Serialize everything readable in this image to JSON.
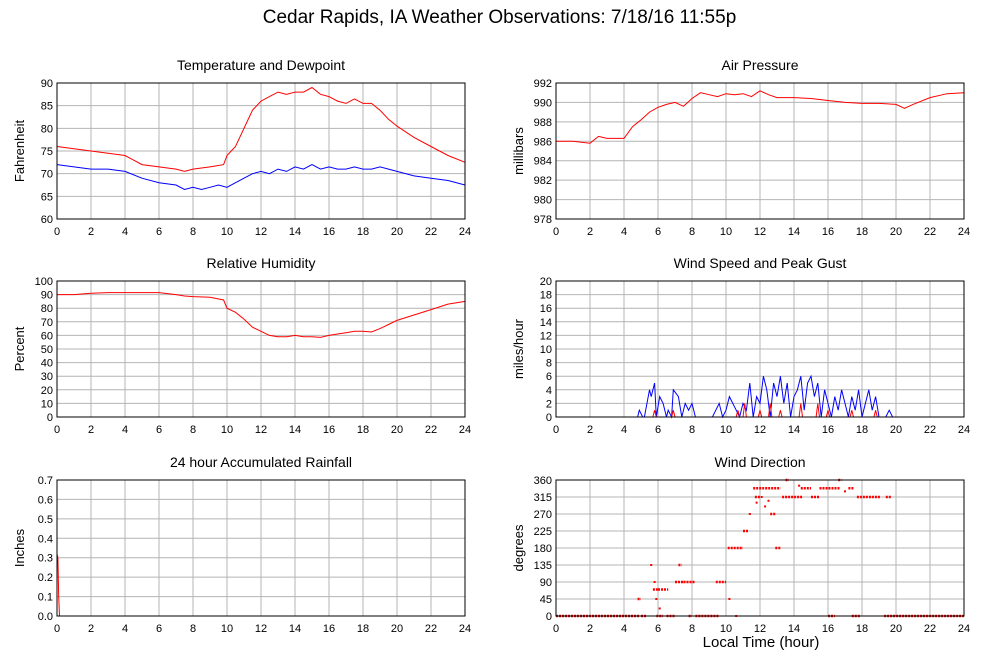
{
  "page": {
    "title": "Cedar Rapids, IA Weather Observations: 7/18/16 11:55p",
    "xaxis_label": "Local Time (hour)"
  },
  "colors": {
    "primary": "#ff0000",
    "secondary": "#0000ff",
    "grid": "#b4b4b4",
    "frame": "#000000"
  },
  "chart_data": [
    {
      "id": "temp",
      "type": "line",
      "title": "Temperature and Dewpoint",
      "ylabel": "Fahrenheit",
      "xlim": [
        0,
        24
      ],
      "ylim": [
        60,
        90
      ],
      "grid": true,
      "xticks": [
        "0",
        "2",
        "4",
        "6",
        "8",
        "10",
        "12",
        "14",
        "16",
        "18",
        "20",
        "22",
        "24"
      ],
      "yticks": [
        "60",
        "65",
        "70",
        "75",
        "80",
        "85",
        "90"
      ],
      "series": [
        {
          "color": "#ff0000",
          "x": [
            0,
            1,
            2,
            3,
            4,
            4.5,
            5,
            6,
            7,
            7.5,
            8,
            9,
            9.8,
            10,
            10.5,
            11,
            11.5,
            12,
            12.5,
            13,
            13.5,
            14,
            14.5,
            15,
            15.5,
            16,
            16.5,
            17,
            17.5,
            18,
            18.5,
            19,
            19.5,
            20,
            21,
            22,
            23,
            24
          ],
          "y": [
            76,
            75.5,
            75,
            74.5,
            74,
            73,
            72,
            71.5,
            71,
            70.5,
            71,
            71.5,
            72,
            74,
            76,
            80,
            84,
            86,
            87,
            88,
            87.5,
            88,
            88,
            89,
            87.5,
            87,
            86,
            85.5,
            86.5,
            85.5,
            85.5,
            84,
            82,
            80.5,
            78,
            76,
            74,
            72.5
          ]
        },
        {
          "color": "#0000ff",
          "x": [
            0,
            1,
            2,
            3,
            4,
            5,
            6,
            7,
            7.5,
            8,
            8.5,
            9,
            9.5,
            10,
            10.5,
            11,
            11.5,
            12,
            12.5,
            13,
            13.5,
            14,
            14.5,
            15,
            15.5,
            16,
            16.5,
            17,
            17.5,
            18,
            18.5,
            19,
            19.5,
            20,
            21,
            22,
            23,
            24
          ],
          "y": [
            72,
            71.5,
            71,
            71,
            70.5,
            69,
            68,
            67.5,
            66.5,
            67,
            66.5,
            67,
            67.5,
            67,
            68,
            69,
            70,
            70.5,
            70,
            71,
            70.5,
            71.5,
            71,
            72,
            71,
            71.5,
            71,
            71,
            71.5,
            71,
            71,
            71.5,
            71,
            70.5,
            69.5,
            69,
            68.5,
            67.5
          ]
        }
      ]
    },
    {
      "id": "pressure",
      "type": "line",
      "title": "Air Pressure",
      "ylabel": "millibars",
      "xlim": [
        0,
        24
      ],
      "ylim": [
        978,
        992
      ],
      "grid": true,
      "xticks": [
        "0",
        "2",
        "4",
        "6",
        "8",
        "10",
        "12",
        "14",
        "16",
        "18",
        "20",
        "22",
        "24"
      ],
      "yticks": [
        "978",
        "980",
        "982",
        "984",
        "986",
        "988",
        "990",
        "992"
      ],
      "series": [
        {
          "color": "#ff0000",
          "x": [
            0,
            1,
            2,
            2.5,
            3,
            4,
            4.5,
            5,
            5.5,
            6,
            6.5,
            7,
            7.5,
            8,
            8.5,
            9,
            9.5,
            10,
            10.5,
            11,
            11.5,
            12,
            12.5,
            13,
            14,
            15,
            16,
            17,
            18,
            19,
            20,
            20.5,
            21,
            22,
            23,
            24
          ],
          "y": [
            986,
            986,
            985.8,
            986.5,
            986.3,
            986.3,
            987.5,
            988.2,
            989,
            989.5,
            989.8,
            990,
            989.6,
            990.4,
            991,
            990.8,
            990.6,
            990.9,
            990.8,
            990.9,
            990.6,
            991.2,
            990.8,
            990.5,
            990.5,
            990.4,
            990.2,
            990,
            989.9,
            989.9,
            989.8,
            989.4,
            989.8,
            990.5,
            990.9,
            991
          ]
        }
      ]
    },
    {
      "id": "humidity",
      "type": "line",
      "title": "Relative Humidity",
      "ylabel": "Percent",
      "xlim": [
        0,
        24
      ],
      "ylim": [
        0,
        100
      ],
      "grid": true,
      "xticks": [
        "0",
        "2",
        "4",
        "6",
        "8",
        "10",
        "12",
        "14",
        "16",
        "18",
        "20",
        "22",
        "24"
      ],
      "yticks": [
        "0",
        "10",
        "20",
        "30",
        "40",
        "50",
        "60",
        "70",
        "80",
        "90",
        "100"
      ],
      "series": [
        {
          "color": "#ff0000",
          "x": [
            0,
            1,
            2,
            3,
            4,
            5,
            6,
            7,
            7.5,
            8,
            9,
            9.8,
            10,
            10.5,
            11,
            11.5,
            12,
            12.5,
            13,
            13.5,
            14,
            14.5,
            15,
            15.5,
            16,
            16.5,
            17,
            17.5,
            18,
            18.5,
            19,
            19.5,
            20,
            21,
            22,
            23,
            24
          ],
          "y": [
            90,
            90,
            91,
            91.5,
            91.5,
            91.5,
            91.5,
            90,
            89,
            88.5,
            88,
            86,
            80,
            77,
            72,
            66,
            63,
            60,
            59,
            59,
            60,
            59,
            59,
            58.5,
            60,
            61,
            62,
            63,
            63,
            62.5,
            65,
            68,
            71,
            75,
            79,
            83,
            85
          ]
        }
      ]
    },
    {
      "id": "wind",
      "type": "line",
      "title": "Wind Speed and Peak Gust",
      "ylabel": "miles/hour",
      "xlim": [
        0,
        24
      ],
      "ylim": [
        0,
        20
      ],
      "grid": true,
      "xticks": [
        "0",
        "2",
        "4",
        "6",
        "8",
        "10",
        "12",
        "14",
        "16",
        "18",
        "20",
        "22",
        "24"
      ],
      "yticks": [
        "0",
        "2",
        "4",
        "6",
        "8",
        "10",
        "12",
        "14",
        "16",
        "18",
        "20"
      ],
      "series": [
        {
          "color": "#0000ff",
          "x": [
            0,
            4.8,
            4.9,
            5.1,
            5.2,
            5.5,
            5.6,
            5.8,
            5.9,
            6.1,
            6.3,
            6.5,
            6.6,
            6.8,
            6.9,
            7.2,
            7.4,
            7.6,
            7.8,
            8,
            8.2,
            8.4,
            9.2,
            9.4,
            9.6,
            9.8,
            10,
            10.2,
            10.4,
            10.6,
            10.8,
            11,
            11.2,
            11.4,
            11.6,
            11.8,
            12,
            12.2,
            12.4,
            12.6,
            12.8,
            13,
            13.2,
            13.4,
            13.6,
            13.8,
            14,
            14.2,
            14.4,
            14.6,
            14.8,
            15,
            15.2,
            15.4,
            15.6,
            15.8,
            16,
            16.2,
            16.4,
            16.6,
            16.8,
            17,
            17.2,
            17.4,
            17.6,
            17.8,
            18,
            18.2,
            18.4,
            18.6,
            18.8,
            19,
            19.4,
            19.6,
            19.8,
            24
          ],
          "y": [
            0,
            0,
            1,
            0,
            0,
            4,
            3,
            5,
            0,
            3,
            2,
            0,
            1,
            0,
            4,
            3,
            0,
            2,
            1,
            2,
            0,
            0,
            0,
            1,
            2,
            0,
            1,
            3,
            2,
            1,
            0,
            2,
            1,
            5,
            0,
            3,
            2,
            6,
            4,
            0,
            5,
            3,
            6,
            2,
            5,
            0,
            3,
            4,
            6,
            1,
            5,
            6,
            3,
            5,
            0,
            4,
            2,
            0,
            3,
            1,
            4,
            2,
            0,
            3,
            1,
            4,
            0,
            2,
            4,
            1,
            3,
            0,
            0,
            1,
            0,
            0
          ]
        },
        {
          "color": "#ff0000",
          "x": [
            0,
            5.7,
            5.8,
            5.9,
            6.8,
            6.9,
            7.0,
            10.6,
            10.7,
            10.8,
            11.0,
            11.1,
            11.2,
            11.9,
            12.0,
            12.1,
            12.5,
            12.6,
            12.7,
            13.1,
            13.2,
            13.3,
            14.3,
            14.4,
            14.5,
            15.3,
            15.4,
            15.5,
            15.9,
            16.0,
            16.1,
            17.3,
            17.4,
            17.5,
            18.7,
            18.8,
            18.9,
            24
          ],
          "y": [
            0,
            0,
            1,
            0,
            0,
            1,
            0,
            0,
            1,
            0,
            0,
            2,
            0,
            0,
            1,
            0,
            0,
            2,
            0,
            0,
            1,
            0,
            0,
            2,
            0,
            0,
            2,
            0,
            0,
            1,
            0,
            0,
            1,
            0,
            0,
            1,
            0,
            0
          ]
        }
      ]
    },
    {
      "id": "rain",
      "type": "line",
      "title": "24 hour Accumulated Rainfall",
      "ylabel": "Inches",
      "xlim": [
        0,
        24
      ],
      "ylim": [
        0,
        0.7
      ],
      "grid": true,
      "xticks": [
        "0",
        "2",
        "4",
        "6",
        "8",
        "10",
        "12",
        "14",
        "16",
        "18",
        "20",
        "22",
        "24"
      ],
      "yticks": [
        "0.0",
        "0.1",
        "0.2",
        "0.3",
        "0.4",
        "0.5",
        "0.6",
        "0.7"
      ],
      "series": [
        {
          "color": "#ff0000",
          "x": [
            0,
            0.05,
            0.1,
            0.15,
            24
          ],
          "y": [
            0.32,
            0.3,
            0.1,
            0,
            0
          ]
        }
      ]
    },
    {
      "id": "direction",
      "type": "scatter",
      "title": "Wind Direction",
      "ylabel": "degrees",
      "xlim": [
        0,
        24
      ],
      "ylim": [
        0,
        360
      ],
      "grid": true,
      "xticks": [
        "0",
        "2",
        "4",
        "6",
        "8",
        "10",
        "12",
        "14",
        "16",
        "18",
        "20",
        "22",
        "24"
      ],
      "yticks": [
        "0",
        "45",
        "90",
        "135",
        "180",
        "225",
        "270",
        "315",
        "360"
      ],
      "segments": [
        {
          "x0": 0,
          "x1": 4.9,
          "y": 0
        },
        {
          "x0": 5.0,
          "x1": 5.3,
          "y": 0
        },
        {
          "x0": 5.9,
          "x1": 6.3,
          "y": 0
        },
        {
          "x0": 6.5,
          "x1": 7.0,
          "y": 0
        },
        {
          "x0": 7.8,
          "x1": 8.0,
          "y": 0
        },
        {
          "x0": 8.2,
          "x1": 9.6,
          "y": 0
        },
        {
          "x0": 16.0,
          "x1": 16.4,
          "y": 0
        },
        {
          "x0": 17.4,
          "x1": 17.9,
          "y": 0
        },
        {
          "x0": 19.3,
          "x1": 24,
          "y": 0
        },
        {
          "x0": 4.8,
          "x1": 5.0,
          "y": 45
        },
        {
          "x0": 5.7,
          "x1": 6.0,
          "y": 70
        },
        {
          "x0": 6.0,
          "x1": 6.6,
          "y": 70
        },
        {
          "x0": 7.0,
          "x1": 7.5,
          "y": 90
        },
        {
          "x0": 7.5,
          "x1": 8.2,
          "y": 90
        },
        {
          "x0": 9.4,
          "x1": 10.0,
          "y": 90
        },
        {
          "x0": 7.2,
          "x1": 7.4,
          "y": 135
        },
        {
          "x0": 10.1,
          "x1": 11.0,
          "y": 180
        },
        {
          "x0": 12.9,
          "x1": 13.2,
          "y": 180
        },
        {
          "x0": 11.0,
          "x1": 11.3,
          "y": 225
        },
        {
          "x0": 12.6,
          "x1": 12.9,
          "y": 270
        },
        {
          "x0": 11.7,
          "x1": 12.0,
          "y": 315
        },
        {
          "x0": 13.3,
          "x1": 14.5,
          "y": 315
        },
        {
          "x0": 15.0,
          "x1": 15.5,
          "y": 315
        },
        {
          "x0": 17.7,
          "x1": 19.1,
          "y": 315
        },
        {
          "x0": 19.4,
          "x1": 19.7,
          "y": 315
        },
        {
          "x0": 11.6,
          "x1": 13.2,
          "y": 338
        },
        {
          "x0": 14.4,
          "x1": 15.0,
          "y": 338
        },
        {
          "x0": 15.5,
          "x1": 16.7,
          "y": 338
        },
        {
          "x0": 17.2,
          "x1": 17.5,
          "y": 338
        },
        {
          "x0": 13.5,
          "x1": 13.7,
          "y": 360
        },
        {
          "x0": 16.6,
          "x1": 16.8,
          "y": 360
        }
      ],
      "points": [
        [
          5.6,
          135
        ],
        [
          5.8,
          90
        ],
        [
          5.9,
          45
        ],
        [
          6.1,
          20
        ],
        [
          10.2,
          45
        ],
        [
          10.6,
          0
        ],
        [
          11.4,
          270
        ],
        [
          12.1,
          315
        ],
        [
          12.3,
          290
        ],
        [
          12.5,
          305
        ],
        [
          11.8,
          300
        ],
        [
          14.3,
          345
        ],
        [
          17.0,
          330
        ]
      ]
    }
  ]
}
